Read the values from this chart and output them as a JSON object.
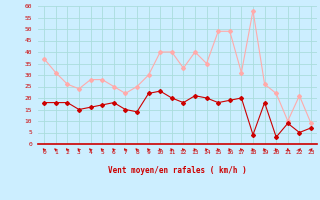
{
  "hours": [
    0,
    1,
    2,
    3,
    4,
    5,
    6,
    7,
    8,
    9,
    10,
    11,
    12,
    13,
    14,
    15,
    16,
    17,
    18,
    19,
    20,
    21,
    22,
    23
  ],
  "wind_avg": [
    18,
    18,
    18,
    15,
    16,
    17,
    18,
    15,
    14,
    22,
    23,
    20,
    18,
    21,
    20,
    18,
    19,
    20,
    4,
    18,
    3,
    9,
    5,
    7
  ],
  "wind_gust": [
    37,
    31,
    26,
    24,
    28,
    28,
    25,
    22,
    25,
    30,
    40,
    40,
    33,
    40,
    35,
    49,
    49,
    31,
    58,
    26,
    22,
    10,
    21,
    9
  ],
  "bg_color": "#cceeff",
  "grid_color": "#aadddd",
  "avg_color": "#cc0000",
  "gust_color": "#ffaaaa",
  "xlabel": "Vent moyen/en rafales ( km/h )",
  "ylim": [
    0,
    60
  ],
  "yticks": [
    0,
    5,
    10,
    15,
    20,
    25,
    30,
    35,
    40,
    45,
    50,
    55,
    60
  ],
  "xlim": [
    -0.5,
    23.5
  ],
  "arrow_dirs": [
    225,
    225,
    225,
    225,
    225,
    225,
    225,
    225,
    225,
    225,
    225,
    225,
    225,
    225,
    225,
    225,
    225,
    225,
    225,
    225,
    225,
    180,
    135,
    135
  ]
}
